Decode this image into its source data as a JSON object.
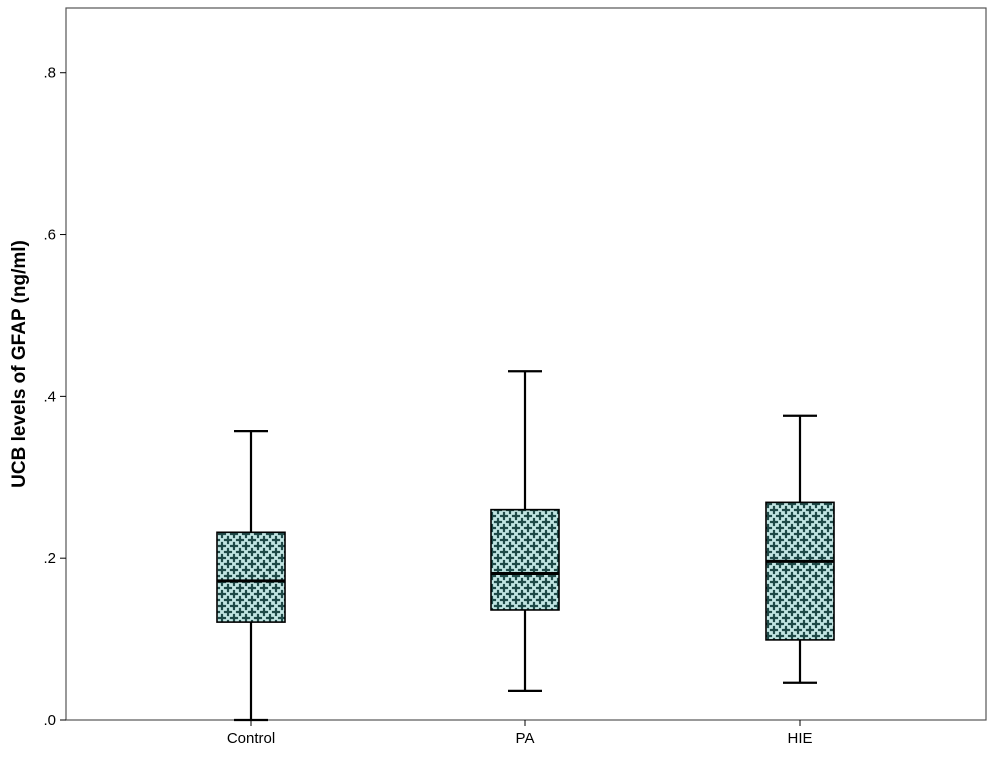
{
  "chart_data": {
    "type": "boxplot",
    "title": "",
    "xlabel": "",
    "ylabel": "UCB levels of GFAP (ng/ml)",
    "ylim": [
      0,
      0.88
    ],
    "yticks": [
      0,
      0.2,
      0.4,
      0.6,
      0.8
    ],
    "ytick_labels": [
      ".0",
      ".2",
      ".4",
      ".6",
      ".8"
    ],
    "grid": false,
    "categories": [
      "Control",
      "PA",
      "HIE"
    ],
    "boxes": [
      {
        "category": "Control",
        "whisker_low": 0.0,
        "q1": 0.121,
        "median": 0.172,
        "q3": 0.232,
        "whisker_high": 0.357
      },
      {
        "category": "PA",
        "whisker_low": 0.036,
        "q1": 0.136,
        "median": 0.181,
        "q3": 0.26,
        "whisker_high": 0.431
      },
      {
        "category": "HIE",
        "whisker_low": 0.046,
        "q1": 0.099,
        "median": 0.196,
        "q3": 0.269,
        "whisker_high": 0.376
      }
    ],
    "box_fill_color": "#c2e6e3",
    "box_pattern_color": "#1f4a48",
    "line_color": "#000000"
  }
}
